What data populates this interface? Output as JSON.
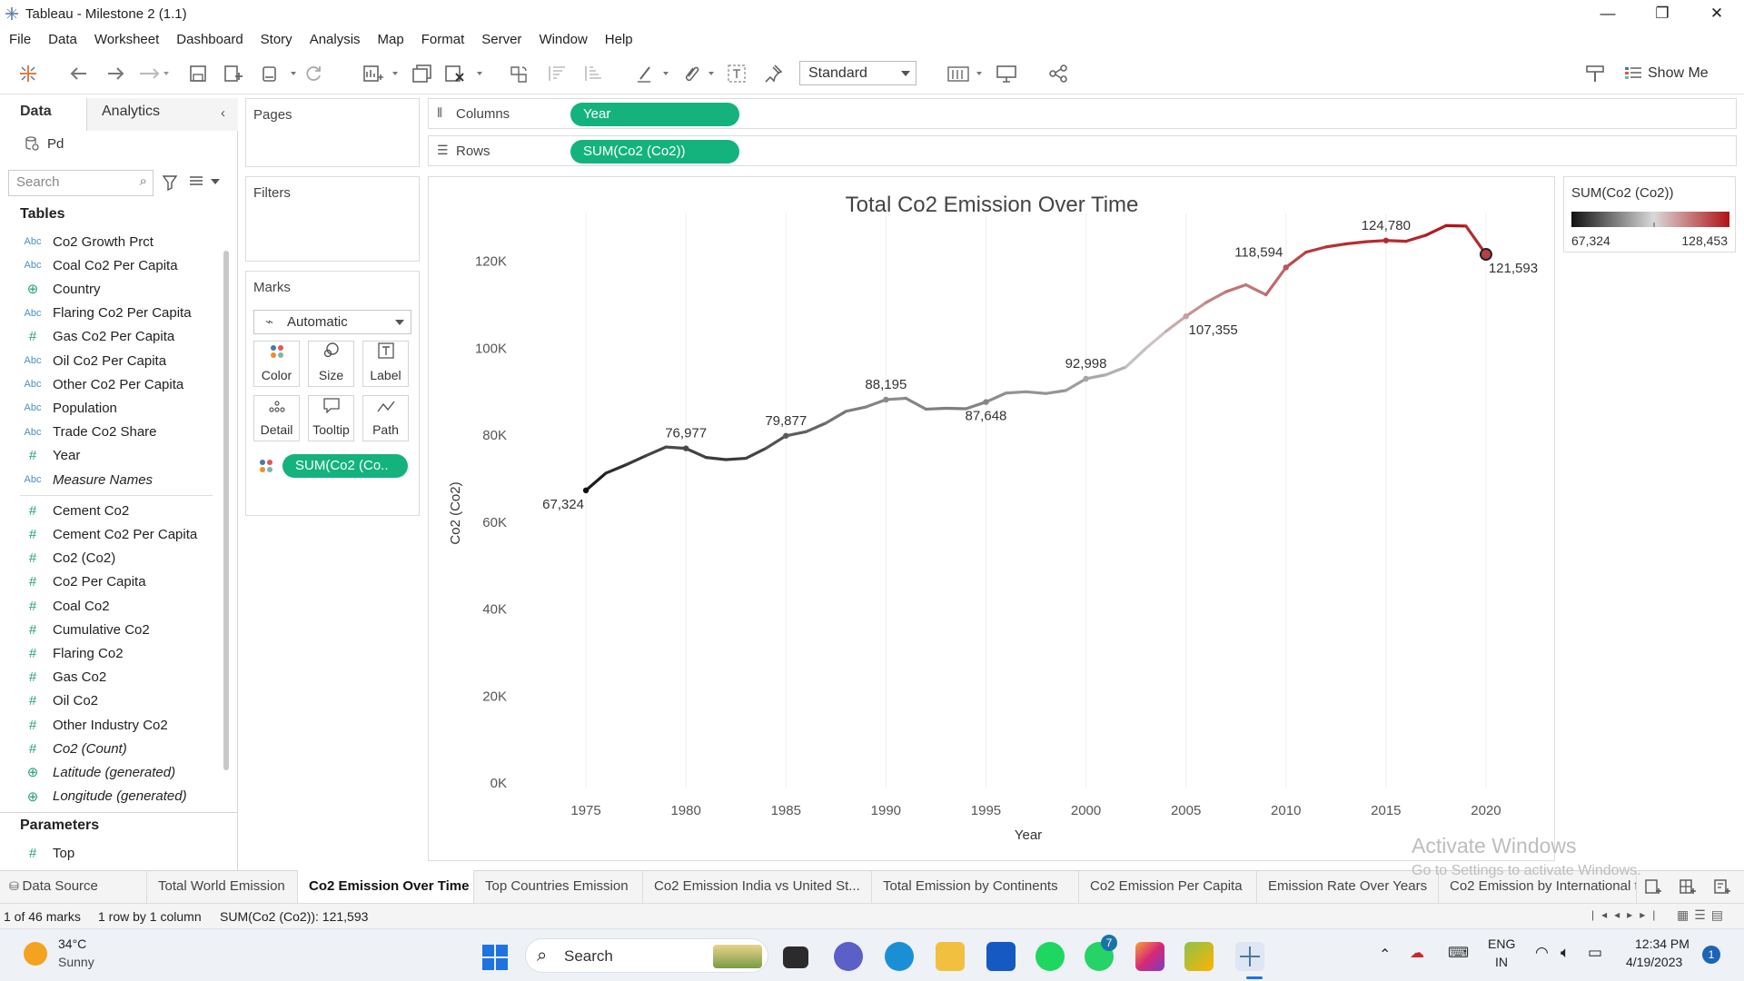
{
  "window": {
    "title": "Tableau - Milestone 2 (1.1)",
    "minimize": "—",
    "restore": "❐",
    "close": "✕"
  },
  "menu": [
    "File",
    "Data",
    "Worksheet",
    "Dashboard",
    "Story",
    "Analysis",
    "Map",
    "Format",
    "Server",
    "Window",
    "Help"
  ],
  "toolbar": {
    "fit_select": "Standard",
    "show_me": "Show Me"
  },
  "datapane": {
    "tab_data": "Data",
    "tab_analytics": "Analytics",
    "datasource": "Pd",
    "search_placeholder": "Search",
    "tables_header": "Tables",
    "dimensions": [
      {
        "type": "abc",
        "label": "Co2 Growth Prct"
      },
      {
        "type": "abc",
        "label": "Coal Co2 Per Capita"
      },
      {
        "type": "globe",
        "label": "Country"
      },
      {
        "type": "abc",
        "label": "Flaring Co2 Per Capita"
      },
      {
        "type": "hash",
        "label": "Gas Co2 Per Capita"
      },
      {
        "type": "abc",
        "label": "Oil Co2 Per Capita"
      },
      {
        "type": "abc",
        "label": "Other Co2 Per Capita"
      },
      {
        "type": "abc",
        "label": "Population"
      },
      {
        "type": "abc",
        "label": "Trade Co2 Share"
      },
      {
        "type": "hash",
        "label": "Year"
      },
      {
        "type": "abc",
        "label": "Measure Names",
        "italic": true
      }
    ],
    "measures": [
      {
        "type": "hash",
        "label": "Cement Co2"
      },
      {
        "type": "hash",
        "label": "Cement Co2 Per Capita"
      },
      {
        "type": "hash",
        "label": "Co2 (Co2)"
      },
      {
        "type": "hash",
        "label": "Co2 Per Capita"
      },
      {
        "type": "hash",
        "label": "Coal Co2"
      },
      {
        "type": "hash",
        "label": "Cumulative Co2"
      },
      {
        "type": "hash",
        "label": "Flaring Co2"
      },
      {
        "type": "hash",
        "label": "Gas Co2"
      },
      {
        "type": "hash",
        "label": "Oil Co2"
      },
      {
        "type": "hash",
        "label": "Other Industry Co2"
      },
      {
        "type": "hash",
        "label": "Co2 (Count)",
        "italic": true
      },
      {
        "type": "globe",
        "label": "Latitude (generated)",
        "italic": true
      },
      {
        "type": "globe",
        "label": "Longitude (generated)",
        "italic": true
      }
    ],
    "parameters_header": "Parameters",
    "parameters": [
      {
        "type": "hash",
        "label": "Top"
      }
    ]
  },
  "shelves": {
    "pages": "Pages",
    "filters": "Filters",
    "marks": "Marks",
    "mark_type": "Automatic",
    "buttons": [
      "Color",
      "Size",
      "Label",
      "Detail",
      "Tooltip",
      "Path"
    ],
    "marks_pill": "SUM(Co2 (Co..",
    "columns_label": "Columns",
    "columns_pill": "Year",
    "rows_label": "Rows",
    "rows_pill": "SUM(Co2 (Co2))"
  },
  "legend": {
    "title": "SUM(Co2 (Co2))",
    "min": "67,324",
    "max": "128,453"
  },
  "chart_data": {
    "type": "line",
    "title": "Total Co2 Emission Over Time",
    "xlabel": "Year",
    "ylabel": "Co2 (Co2)",
    "xlim": [
      1971.5,
      2023
    ],
    "ylim": [
      -1000,
      131000
    ],
    "x_ticks": [
      1975,
      1980,
      1985,
      1990,
      1995,
      2000,
      2005,
      2010,
      2015,
      2020
    ],
    "y_ticks": [
      0,
      20000,
      40000,
      60000,
      80000,
      100000,
      120000
    ],
    "y_tick_labels": [
      "0K",
      "20K",
      "40K",
      "60K",
      "80K",
      "100K",
      "120K"
    ],
    "color_range": [
      "#111111",
      "#cfcfcf",
      "#b01217"
    ],
    "color_min": 67324,
    "color_mid": 100000,
    "color_max": 128453,
    "grid": "vertical",
    "x": [
      1975,
      1976,
      1977,
      1978,
      1979,
      1980,
      1981,
      1982,
      1983,
      1984,
      1985,
      1986,
      1987,
      1988,
      1989,
      1990,
      1991,
      1992,
      1993,
      1994,
      1995,
      1996,
      1997,
      1998,
      1999,
      2000,
      2001,
      2002,
      2003,
      2004,
      2005,
      2006,
      2007,
      2008,
      2009,
      2010,
      2011,
      2012,
      2013,
      2014,
      2015,
      2016,
      2017,
      2018,
      2019,
      2020
    ],
    "y": [
      67324,
      71300,
      73200,
      75300,
      77300,
      76977,
      74900,
      74400,
      74700,
      77000,
      79877,
      80800,
      82800,
      85500,
      86500,
      88195,
      88500,
      86000,
      86200,
      86100,
      87648,
      89700,
      90000,
      89600,
      90300,
      92998,
      93900,
      95700,
      100000,
      103900,
      107355,
      110500,
      113000,
      114600,
      112300,
      118594,
      122100,
      123300,
      124000,
      124500,
      124780,
      124600,
      126000,
      128200,
      128100,
      121593
    ],
    "labels": [
      {
        "year": 1975,
        "text": "67,324",
        "pos": "below"
      },
      {
        "year": 1980,
        "text": "76,977",
        "pos": "above"
      },
      {
        "year": 1985,
        "text": "79,877",
        "pos": "above"
      },
      {
        "year": 1990,
        "text": "88,195",
        "pos": "above"
      },
      {
        "year": 1995,
        "text": "87,648",
        "pos": "below"
      },
      {
        "year": 2000,
        "text": "92,998",
        "pos": "above"
      },
      {
        "year": 2005,
        "text": "107,355",
        "pos": "below"
      },
      {
        "year": 2010,
        "text": "118,594",
        "pos": "above"
      },
      {
        "year": 2015,
        "text": "124,780",
        "pos": "above"
      },
      {
        "year": 2020,
        "text": "121,593",
        "pos": "below"
      }
    ],
    "selected_year": 2020
  },
  "sheet_tabs": {
    "datasource": "Data Source",
    "sheets": [
      "Total World Emission",
      "Co2 Emission Over Time",
      "Top Countries Emission",
      "Co2 Emission India vs United St...",
      "Total Emission by Continents",
      "Co2 Emission Per Capita",
      "Emission Rate Over Years",
      "Co2 Emission by International t"
    ],
    "active": "Co2 Emission Over Time"
  },
  "status": {
    "marks": "1 of 46 marks",
    "dims": "1 row by 1 column",
    "sum": "SUM(Co2 (Co2)): 121,593"
  },
  "watermark": {
    "line1": "Activate Windows",
    "line2": "Go to Settings to activate Windows."
  },
  "taskbar": {
    "temp": "34°C",
    "condition": "Sunny",
    "search": "Search",
    "whatsapp_badge": "7",
    "lang1": "ENG",
    "lang2": "IN",
    "time": "12:34 PM",
    "date": "4/19/2023",
    "notif": "1"
  }
}
